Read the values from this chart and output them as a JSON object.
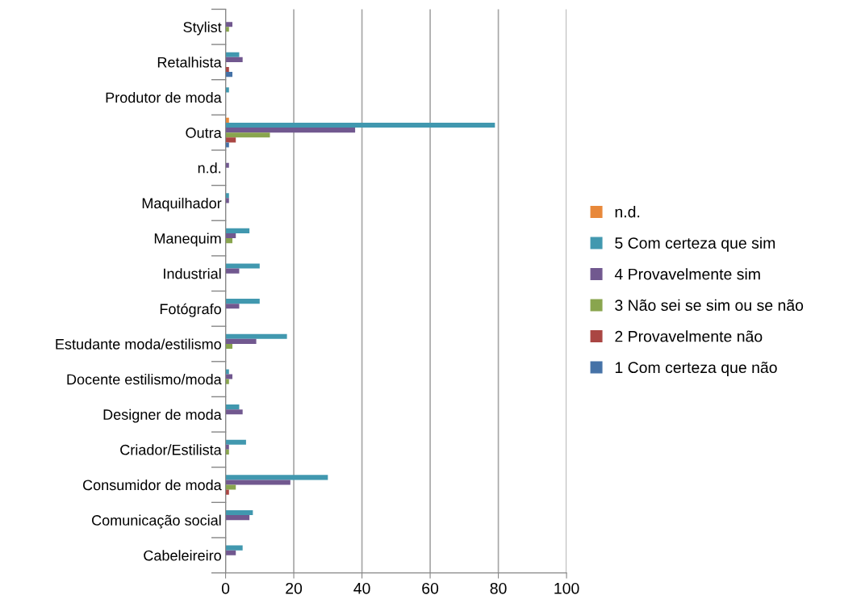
{
  "chart_data": {
    "type": "bar",
    "orientation": "horizontal",
    "categories": [
      "Stylist",
      "Retalhista",
      "Produtor de moda",
      "Outra",
      "n.d.",
      "Maquilhador",
      "Manequim",
      "Industrial",
      "Fotógrafo",
      "Estudante moda/estilismo",
      "Docente estilismo/moda",
      "Designer de moda",
      "Criador/Estilista",
      "Consumidor de moda",
      "Comunicação social",
      "Cabeleireiro"
    ],
    "series": [
      {
        "name": "n.d.",
        "color": "#e8883a",
        "values": [
          0,
          0,
          0,
          1,
          0,
          0,
          0,
          0,
          0,
          0,
          0,
          0,
          0,
          0,
          0,
          0
        ]
      },
      {
        "name": "5 Com certeza que sim",
        "color": "#4198af",
        "values": [
          0,
          4,
          1,
          79,
          0,
          1,
          7,
          10,
          10,
          18,
          1,
          4,
          6,
          30,
          8,
          5
        ]
      },
      {
        "name": "4 Provavelmente sim",
        "color": "#71588f",
        "values": [
          2,
          5,
          0,
          38,
          1,
          1,
          3,
          4,
          4,
          9,
          2,
          5,
          1,
          19,
          7,
          3
        ]
      },
      {
        "name": "3 Não sei se sim ou se não",
        "color": "#89a54e",
        "values": [
          1,
          0,
          0,
          13,
          0,
          0,
          2,
          0,
          0,
          2,
          1,
          0,
          1,
          3,
          0,
          0
        ]
      },
      {
        "name": "2 Provavelmente não",
        "color": "#aa4643",
        "values": [
          0,
          1,
          0,
          3,
          0,
          0,
          0,
          0,
          0,
          0,
          0,
          0,
          0,
          1,
          0,
          0
        ]
      },
      {
        "name": "1 Com certeza que não",
        "color": "#4572a7",
        "values": [
          0,
          2,
          0,
          1,
          0,
          0,
          0,
          0,
          0,
          0,
          0,
          0,
          0,
          0,
          0,
          0
        ]
      }
    ],
    "xlim": [
      0,
      100
    ],
    "xticks": [
      0,
      20,
      40,
      60,
      80,
      100
    ],
    "grid": "x",
    "legend": "right"
  }
}
